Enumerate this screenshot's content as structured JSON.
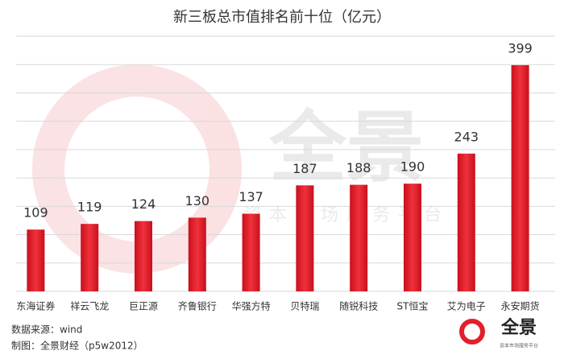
{
  "chart_data": {
    "type": "bar",
    "title": "新三板总市值排名前十位（亿元）",
    "categories": [
      "东海证券",
      "祥云飞龙",
      "巨正源",
      "齐鲁银行",
      "华强方特",
      "贝特瑞",
      "随锐科技",
      "ST恒宝",
      "艾为电子",
      "永安期货"
    ],
    "values": [
      109,
      119,
      124,
      130,
      137,
      187,
      188,
      190,
      243,
      399
    ],
    "color": "#e21f2c",
    "ylim": [
      0,
      450
    ],
    "yticks": [
      0,
      50,
      100,
      150,
      200,
      250,
      300,
      350,
      400,
      450
    ],
    "grid": true
  },
  "watermark": {
    "brand": "全景",
    "slogan": "资本市场服务平台"
  },
  "footer": {
    "source": "数据来源：wind",
    "credit": "制图：全景财经（p5w2012）"
  },
  "logo": {
    "brand": "全景",
    "slogan": "资本市场服务平台"
  }
}
